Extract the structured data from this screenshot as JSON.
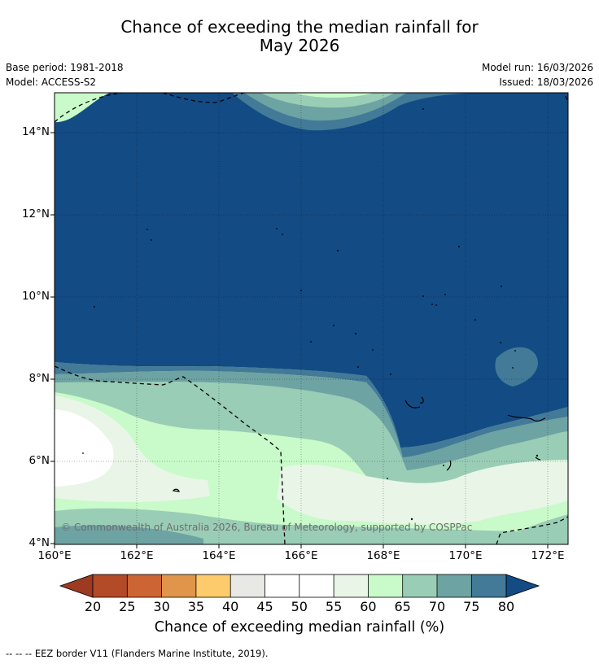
{
  "title": {
    "line1": "Chance of exceeding the median rainfall for",
    "line2": "May 2026"
  },
  "info": {
    "base_period": "Base period: 1981-2018",
    "model": "Model: ACCESS-S2",
    "model_run": "Model run: 16/03/2026",
    "issued": "Issued: 18/03/2026"
  },
  "map": {
    "y_ticks": [
      "14°N",
      "12°N",
      "10°N",
      "8°N",
      "6°N",
      "4°N"
    ],
    "x_ticks": [
      "160°E",
      "162°E",
      "164°E",
      "166°E",
      "168°E",
      "170°E",
      "172°E"
    ],
    "copyright": "© Commonwealth of Australia 2026, Bureau of Meteorology, supported by COSPPac"
  },
  "colorbar": {
    "title": "Chance of exceeding median rainfall (%)",
    "ticks": [
      "20",
      "25",
      "30",
      "35",
      "40",
      "45",
      "50",
      "55",
      "60",
      "65",
      "70",
      "75",
      "80"
    ],
    "colors": {
      "under": "#9e3a22",
      "b20_25": "#b34a28",
      "b25_30": "#cd6434",
      "b30_35": "#e1954a",
      "b35_40": "#fdcb6b",
      "b40_45": "#e8e8e4",
      "b45_50": "#ffffff",
      "b50_55": "#ffffff",
      "b55_60": "#e8f5e7",
      "b60_65": "#c9fac9",
      "b65_70": "#9acdb6",
      "b70_75": "#6ea3a3",
      "b75_80": "#427a98",
      "over": "#134b84"
    }
  },
  "footnote": "-- -- -- EEZ border V11 (Flanders Marine Institute, 2019)."
}
